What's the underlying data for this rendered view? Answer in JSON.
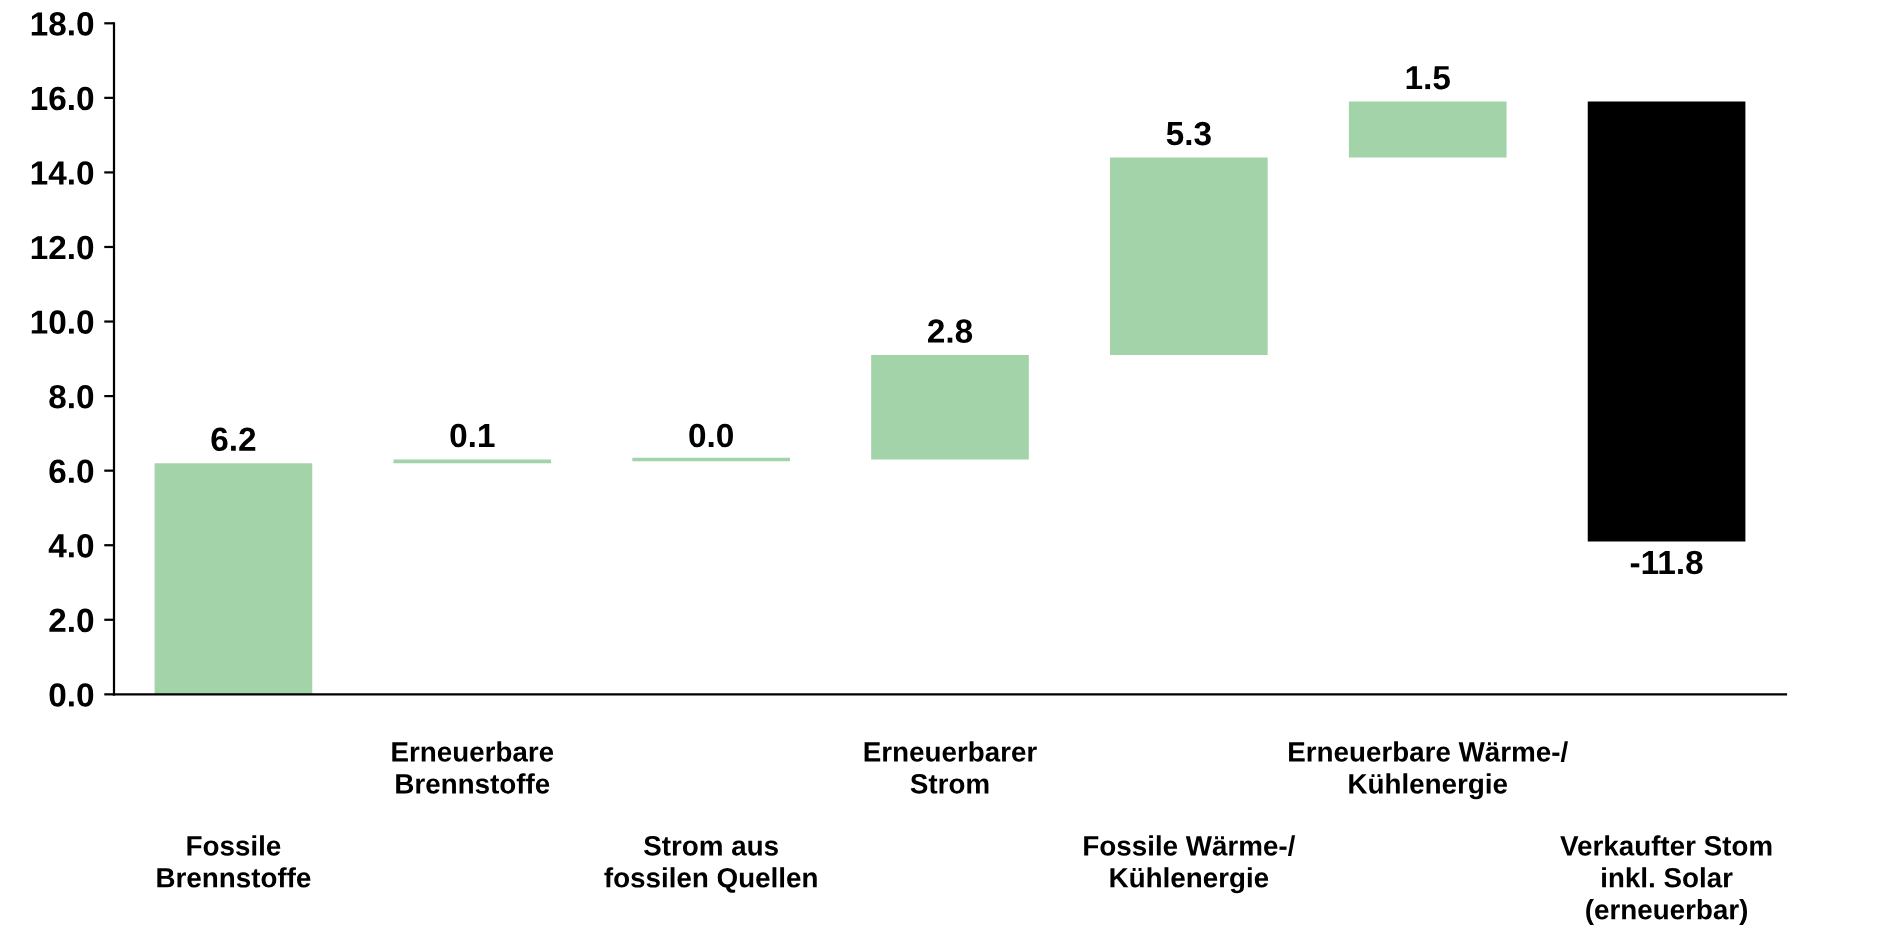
{
  "chart_data": {
    "type": "bar",
    "categories": [
      "Fossile\nBrennstoffe",
      "Erneuerbare\nBrennstoffe",
      "Strom aus\nfossilen Quellen",
      "Erneuerbarer\nStrom",
      "Fossile Wärme-/\nKühlenergie",
      "Erneuerbare Wärme-/\nKühlenergie",
      "Verkaufter Stom\ninkl. Solar\n(erneuerbar)"
    ],
    "values": [
      6.2,
      0.1,
      0.0,
      2.8,
      5.3,
      1.5,
      -11.8
    ],
    "base": [
      0,
      6.2,
      6.3,
      6.3,
      9.1,
      14.4,
      15.9
    ],
    "colors": [
      "#a3d3a8",
      "#a3d3a8",
      "#a3d3a8",
      "#a3d3a8",
      "#a3d3a8",
      "#a3d3a8",
      "#000000"
    ],
    "value_labels": [
      "6.2",
      "0.1",
      "0.0",
      "2.8",
      "5.3",
      "1.5",
      "-11.8"
    ],
    "ylim": [
      0,
      18
    ],
    "yticks": [
      {
        "value": 0,
        "label": "0.0"
      },
      {
        "value": 2,
        "label": "2.0"
      },
      {
        "value": 4,
        "label": "4.0"
      },
      {
        "value": 6,
        "label": "6.0"
      },
      {
        "value": 8,
        "label": "8.0"
      },
      {
        "value": 10,
        "label": "10.0"
      },
      {
        "value": 12,
        "label": "12.0"
      },
      {
        "value": 14,
        "label": "14.0"
      },
      {
        "value": 16,
        "label": "16.0"
      },
      {
        "value": 18,
        "label": "18.0"
      }
    ],
    "grid": false,
    "legend": false
  }
}
